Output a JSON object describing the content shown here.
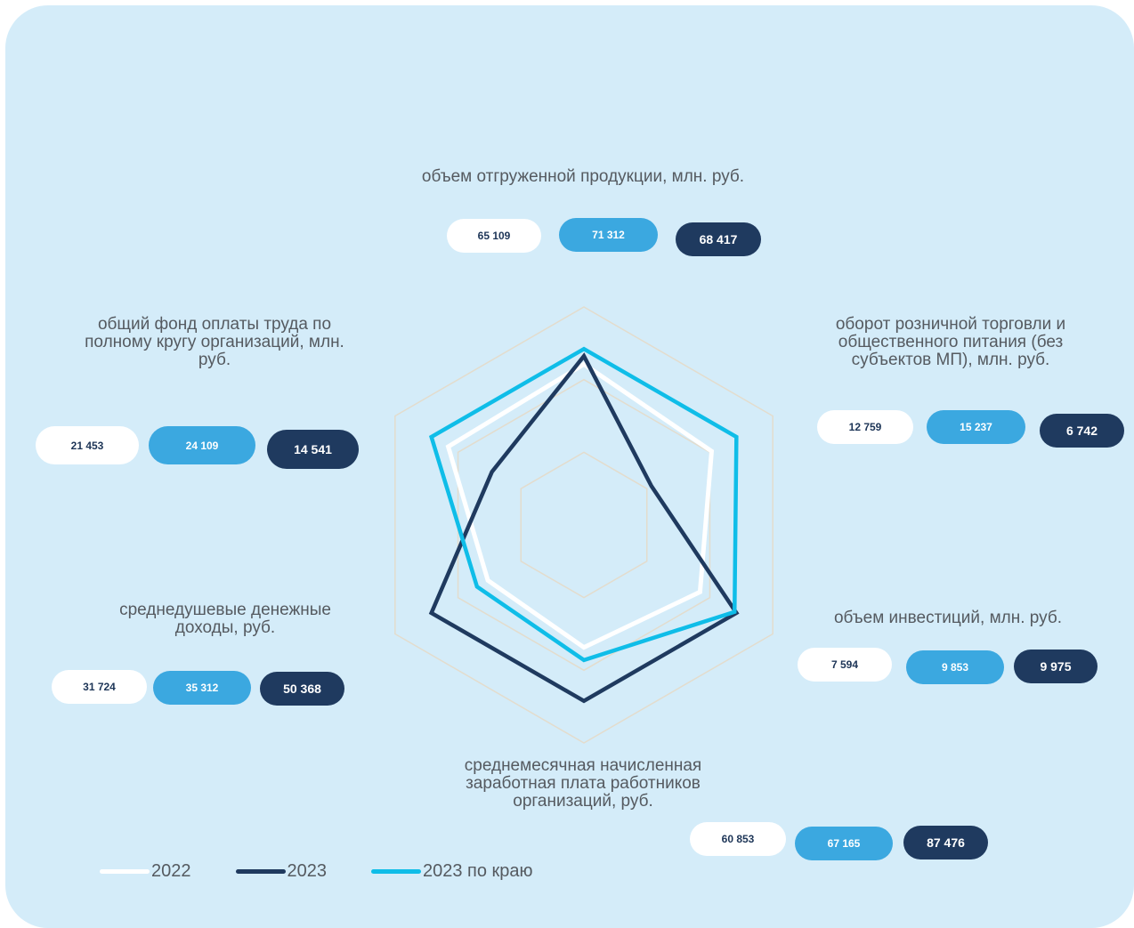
{
  "chart_data": {
    "type": "radar",
    "axes": [
      {
        "label": "объем отгруженной продукции, млн. руб.",
        "v2022": "65 109",
        "v2023k": "71 312",
        "v2023": "68 417"
      },
      {
        "label": "оборот розничной торговли и общественного питания (без субъектов МП), млн. руб.",
        "v2022": "12 759",
        "v2023k": "15 237",
        "v2023": "6 742"
      },
      {
        "label": "объем инвестиций, млн. руб.",
        "v2022": "7 594",
        "v2023k": "9 853",
        "v2023": "9 975"
      },
      {
        "label": "среднемесячная начисленная заработная плата работников организаций, руб.",
        "v2022": "60 853",
        "v2023k": "67 165",
        "v2023": "87 476"
      },
      {
        "label": "среднедушевые денежные доходы, руб.",
        "v2022": "31 724",
        "v2023k": "35 312",
        "v2023": "50 368"
      },
      {
        "label": "общий фонд оплаты труда по полному кругу организаций, млн. руб.",
        "v2022": "21 453",
        "v2023k": "24 109",
        "v2023": "14 541"
      }
    ],
    "series": [
      {
        "name": "2022",
        "color": "#ffffff",
        "values": [
          65109,
          12759,
          7594,
          60853,
          31724,
          21453
        ]
      },
      {
        "name": "2023",
        "color": "#1f3a5f",
        "values": [
          68417,
          6742,
          9975,
          87476,
          50368,
          14541
        ]
      },
      {
        "name": "2023 по краю",
        "color": "#0fbde8",
        "values": [
          71312,
          15237,
          9853,
          67165,
          35312,
          24109
        ]
      }
    ],
    "grid_color": "#e3dccd"
  }
}
